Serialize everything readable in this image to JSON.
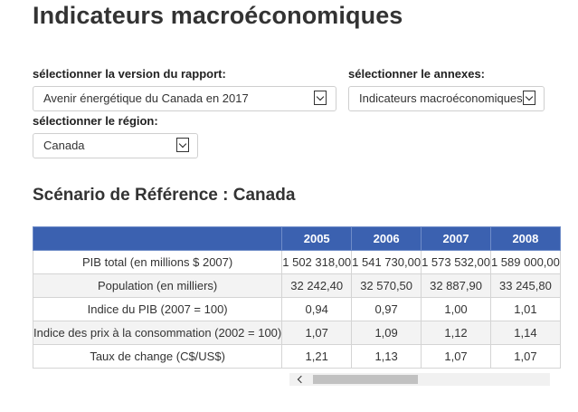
{
  "page": {
    "title": "Indicateurs macroéconomiques"
  },
  "filters": {
    "report_version": {
      "label": "sélectionner la version du rapport:",
      "value": "Avenir énergétique du Canada en 2017"
    },
    "annex": {
      "label": "sélectionner le annexes:",
      "value": "Indicateurs macroéconomiques"
    },
    "region": {
      "label": "sélectionner le région:",
      "value": "Canada"
    }
  },
  "section": {
    "title": "Scénario de Référence : Canada"
  },
  "table": {
    "columns": [
      "",
      "2005",
      "2006",
      "2007",
      "2008"
    ],
    "rows": [
      {
        "label": "PIB total (en millions $ 2007)",
        "values": [
          "1 502 318,00",
          "1 541 730,00",
          "1 573 532,00",
          "1 589 000,00"
        ]
      },
      {
        "label": "Population (en milliers)",
        "values": [
          "32 242,40",
          "32 570,50",
          "32 887,90",
          "33 245,80"
        ]
      },
      {
        "label": "Indice du PIB (2007 = 100)",
        "values": [
          "0,94",
          "0,97",
          "1,00",
          "1,01"
        ]
      },
      {
        "label": "Indice des prix à  la consommation (2002 = 100)",
        "values": [
          "1,07",
          "1,09",
          "1,12",
          "1,14"
        ]
      },
      {
        "label": "Taux de change (C$/US$)",
        "values": [
          "1,21",
          "1,13",
          "1,07",
          "1,07"
        ]
      }
    ]
  }
}
